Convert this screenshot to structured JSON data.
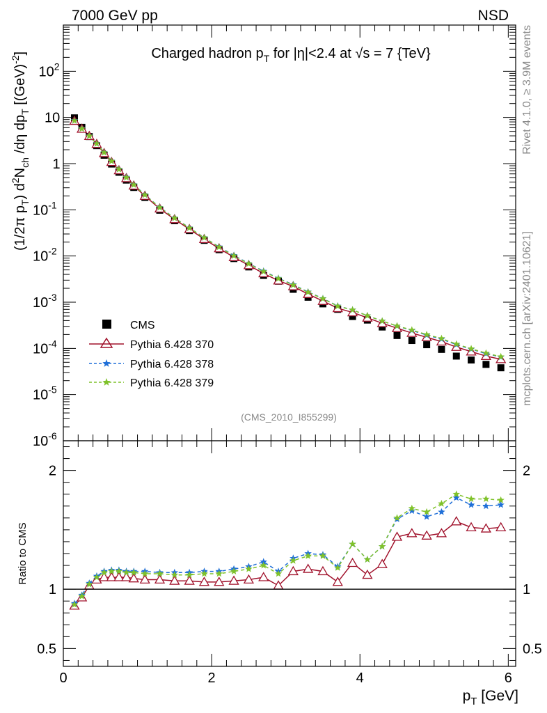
{
  "header": {
    "left": "7000 GeV pp",
    "right": "NSD"
  },
  "side_labels": {
    "rivet": "Rivet 4.1.0, ≥ 3.9M events",
    "mcplots": "mcplots.cern.ch [arXiv:2401.10621]"
  },
  "analysis_id": "(CMS_2010_I855299)",
  "colors": {
    "cms": "#000000",
    "p370": "#a0102a",
    "p378": "#1f6fd8",
    "p379": "#7fc22a"
  },
  "chart_data": [
    {
      "type": "scatter",
      "title_parts": {
        "a": "Charged hadron p",
        "a_sub": "T",
        "b": " for |η|<2.4 at √s = 7 {TeV}"
      },
      "ylabel_parts": {
        "p1": "(1/2π p",
        "s1": "T",
        "p2": ") d",
        "sup1": "2",
        "p3": "N",
        "s2": "ch",
        "p4": " /dη  dp",
        "s3": "T",
        "p5": " [(GeV)",
        "sup2": "-2",
        "p6": "]"
      },
      "yscale": "log",
      "ylim": [
        1e-06,
        1000
      ],
      "xlim": [
        0,
        6.1
      ],
      "ytick_labels": [
        {
          "m": "10",
          "e": "-6"
        },
        {
          "m": "10",
          "e": "-5"
        },
        {
          "m": "10",
          "e": "-4"
        },
        {
          "m": "10",
          "e": "-3"
        },
        {
          "m": "10",
          "e": "-2"
        },
        {
          "m": "10",
          "e": "-1"
        },
        {
          "m": "1",
          "e": ""
        },
        {
          "m": "10",
          "e": ""
        },
        {
          "m": "10",
          "e": "2"
        }
      ],
      "x": [
        0.15,
        0.25,
        0.35,
        0.45,
        0.55,
        0.65,
        0.75,
        0.85,
        0.95,
        1.1,
        1.3,
        1.5,
        1.7,
        1.9,
        2.1,
        2.3,
        2.5,
        2.7,
        2.9,
        3.1,
        3.3,
        3.5,
        3.7,
        3.9,
        4.1,
        4.3,
        4.5,
        4.7,
        4.9,
        5.1,
        5.3,
        5.5,
        5.7,
        5.9
      ],
      "legend": [
        "CMS",
        "Pythia 6.428 370",
        "Pythia 6.428 378",
        "Pythia 6.428 379"
      ],
      "series": [
        {
          "name": "CMS",
          "values": [
            9.8,
            6.1,
            3.85,
            2.45,
            1.52,
            0.98,
            0.65,
            0.44,
            0.305,
            0.185,
            0.098,
            0.058,
            0.0355,
            0.0218,
            0.0137,
            0.0088,
            0.0058,
            0.0038,
            0.00285,
            0.0019,
            0.00128,
            0.00092,
            0.0007,
            0.00049,
            0.00041,
            0.00029,
            0.00019,
            0.000148,
            0.00012,
            9.5e-05,
            6.8e-05,
            5.6e-05,
            4.5e-05,
            3.8e-05
          ]
        },
        {
          "name": "Pythia 6.428 370",
          "values": [
            8.4,
            5.65,
            3.95,
            2.65,
            1.68,
            1.08,
            0.715,
            0.483,
            0.333,
            0.2,
            0.106,
            0.0624,
            0.0381,
            0.0232,
            0.0146,
            0.0094,
            0.0063,
            0.0042,
            0.00293,
            0.0022,
            0.0015,
            0.00106,
            0.00074,
            0.0006,
            0.00046,
            0.00035,
            0.000274,
            0.000215,
            0.000174,
            0.00014,
            0.000107,
            8.5e-05,
            6.8e-05,
            5.8e-05
          ]
        },
        {
          "name": "Pythia 6.428 378",
          "values": [
            8.6,
            5.75,
            4.0,
            2.73,
            1.76,
            1.14,
            0.76,
            0.51,
            0.352,
            0.213,
            0.113,
            0.0668,
            0.0408,
            0.0251,
            0.0158,
            0.0103,
            0.0069,
            0.0047,
            0.0033,
            0.0024,
            0.00167,
            0.0012,
            0.00083,
            0.00068,
            0.00051,
            0.00039,
            0.000304,
            0.000245,
            0.000194,
            0.000159,
            0.000121,
            9.6e-05,
            7.7e-05,
            6.5e-05
          ]
        },
        {
          "name": "Pythia 6.428 379",
          "values": [
            8.5,
            5.7,
            3.97,
            2.7,
            1.74,
            1.13,
            0.75,
            0.5,
            0.348,
            0.21,
            0.112,
            0.066,
            0.0404,
            0.0249,
            0.0156,
            0.0101,
            0.0068,
            0.0046,
            0.00325,
            0.00235,
            0.00165,
            0.00119,
            0.00082,
            0.00068,
            0.00051,
            0.00039,
            0.000306,
            0.00025,
            0.000199,
            0.000164,
            0.000124,
            9.8e-05,
            7.9e-05,
            6.6e-05
          ]
        }
      ]
    },
    {
      "type": "line",
      "ylabel": "Ratio to CMS",
      "ylim": [
        0.35,
        2.25
      ],
      "xlim": [
        0,
        6.1
      ],
      "xlabel_parts": {
        "p": "p",
        "sub": "T",
        "rest": " [GeV]"
      },
      "xtick_labels": [
        "0",
        "2",
        "4",
        "6"
      ],
      "ytick_labels": [
        "0.5",
        "1",
        "2"
      ],
      "reference_line": 1,
      "x": [
        0.15,
        0.25,
        0.35,
        0.45,
        0.55,
        0.65,
        0.75,
        0.85,
        0.95,
        1.1,
        1.3,
        1.5,
        1.7,
        1.9,
        2.1,
        2.3,
        2.5,
        2.7,
        2.9,
        3.1,
        3.3,
        3.5,
        3.7,
        3.9,
        4.1,
        4.3,
        4.5,
        4.7,
        4.9,
        5.1,
        5.3,
        5.5,
        5.7,
        5.9
      ],
      "series": [
        {
          "name": "Pythia 6.428 370",
          "values": [
            0.86,
            0.93,
            1.03,
            1.08,
            1.1,
            1.1,
            1.1,
            1.1,
            1.09,
            1.08,
            1.08,
            1.07,
            1.07,
            1.06,
            1.06,
            1.07,
            1.08,
            1.1,
            1.03,
            1.15,
            1.17,
            1.15,
            1.06,
            1.22,
            1.12,
            1.21,
            1.44,
            1.47,
            1.45,
            1.47,
            1.57,
            1.52,
            1.51,
            1.52
          ]
        },
        {
          "name": "Pythia 6.428 378",
          "values": [
            0.88,
            0.95,
            1.05,
            1.11,
            1.15,
            1.16,
            1.16,
            1.15,
            1.15,
            1.15,
            1.14,
            1.14,
            1.14,
            1.15,
            1.15,
            1.17,
            1.19,
            1.23,
            1.15,
            1.26,
            1.3,
            1.29,
            1.19,
            1.38,
            1.25,
            1.36,
            1.59,
            1.66,
            1.61,
            1.65,
            1.77,
            1.71,
            1.7,
            1.71
          ]
        },
        {
          "name": "Pythia 6.428 379",
          "values": [
            0.87,
            0.94,
            1.04,
            1.1,
            1.14,
            1.15,
            1.15,
            1.14,
            1.14,
            1.13,
            1.13,
            1.12,
            1.12,
            1.13,
            1.13,
            1.15,
            1.17,
            1.2,
            1.13,
            1.24,
            1.28,
            1.28,
            1.18,
            1.38,
            1.25,
            1.36,
            1.6,
            1.68,
            1.65,
            1.72,
            1.8,
            1.76,
            1.76,
            1.75
          ]
        }
      ]
    }
  ]
}
